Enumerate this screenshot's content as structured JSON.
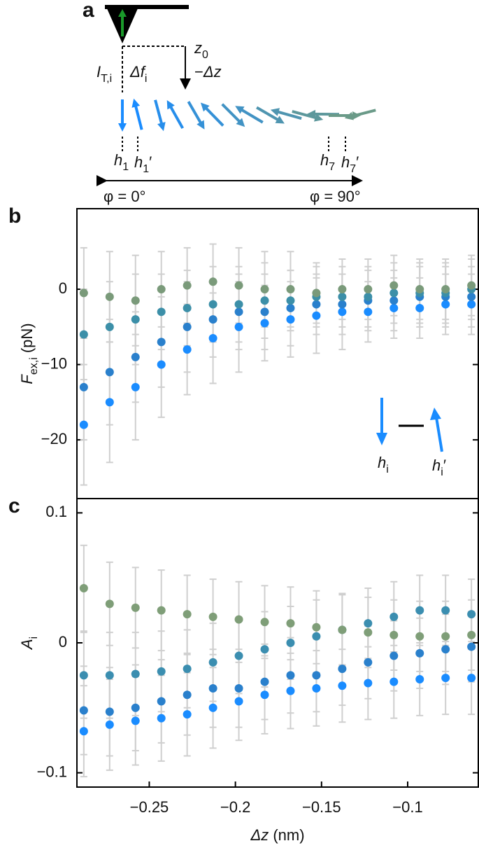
{
  "panel_a": {
    "letter": "a",
    "z0": [
      {
        "t": "z",
        "italic": true
      },
      {
        "t": "0",
        "sub": true
      }
    ],
    "dz": [
      {
        "t": "−"
      },
      {
        "t": "Δz",
        "italic": true
      }
    ],
    "it": [
      {
        "t": "I",
        "italic": true
      },
      {
        "t": "T,i",
        "sub": true
      }
    ],
    "df": [
      {
        "t": "Δf",
        "italic": true
      },
      {
        "t": "i",
        "sub": true
      }
    ],
    "h1": [
      {
        "t": "h",
        "italic": true
      },
      {
        "t": "1",
        "sub": true
      }
    ],
    "h1p": [
      {
        "t": "h",
        "italic": true
      },
      {
        "t": "1",
        "sub": true
      },
      {
        "t": "′"
      }
    ],
    "h7": [
      {
        "t": "h",
        "italic": true
      },
      {
        "t": "7",
        "sub": true
      }
    ],
    "h7p": [
      {
        "t": "h",
        "italic": true
      },
      {
        "t": "7",
        "sub": true
      },
      {
        "t": "′"
      }
    ],
    "phi0": "φ = 0°",
    "phi90": "φ = 90°"
  },
  "chart_data": [
    {
      "type": "scatter",
      "letter": "b",
      "ylabel": [
        {
          "t": "F",
          "italic": true
        },
        {
          "t": "ex,i",
          "sub": true
        },
        {
          "t": " (pN)"
        }
      ],
      "legend": [
        [
          {
            "t": "h",
            "italic": true
          },
          {
            "t": "i",
            "sub": true
          }
        ],
        [
          {
            "t": "h",
            "italic": true
          },
          {
            "t": "i",
            "sub": true
          },
          {
            "t": "′"
          }
        ]
      ],
      "x": [
        -0.288,
        -0.273,
        -0.258,
        -0.243,
        -0.228,
        -0.213,
        -0.198,
        -0.183,
        -0.168,
        -0.153,
        -0.138,
        -0.123,
        -0.108,
        -0.093,
        -0.078,
        -0.063
      ],
      "xlim": [
        -0.292,
        -0.059
      ],
      "ylim": [
        -27.8,
        10.7
      ],
      "yticks": [
        {
          "value": -20,
          "label": "−20"
        },
        {
          "value": -10,
          "label": "−10"
        },
        0
      ],
      "series": [
        {
          "color": "#1a8cff",
          "values": [
            -18,
            -15,
            -13,
            -10,
            -8,
            -6.5,
            -5,
            -4.5,
            -4,
            -3.5,
            -3,
            -3,
            -2.5,
            -2.5,
            -2,
            -2
          ],
          "errors": [
            8,
            8,
            7,
            7,
            6,
            6,
            6,
            5,
            5,
            5,
            5,
            4,
            4,
            4,
            4,
            4
          ]
        },
        {
          "color": "#2a80cc",
          "values": [
            -13,
            -11,
            -9,
            -7,
            -5,
            -4,
            -3,
            -3,
            -2.5,
            -2,
            -2,
            -1.5,
            -1.5,
            -1,
            -1,
            -1
          ],
          "errors": [
            7,
            7,
            6,
            6,
            6,
            5,
            5,
            5,
            5,
            4,
            4,
            4,
            4,
            4,
            4,
            4
          ]
        },
        {
          "color": "#3c8fa8",
          "values": [
            -6,
            -5,
            -4,
            -3,
            -2.5,
            -2,
            -2,
            -1.5,
            -1.5,
            -1,
            -1,
            -1,
            -0.5,
            -0.5,
            -0.5,
            0
          ],
          "errors": [
            6,
            6,
            6,
            5,
            5,
            5,
            5,
            5,
            4,
            4,
            4,
            4,
            4,
            4,
            4,
            4
          ]
        },
        {
          "color": "#7a9a7a",
          "values": [
            -0.5,
            -1,
            -1.5,
            0,
            0.5,
            1,
            0.5,
            0,
            0,
            -0.5,
            0,
            0,
            0.5,
            0,
            0,
            0.5
          ],
          "errors": [
            6,
            6,
            6,
            5,
            5,
            5,
            5,
            5,
            5,
            4,
            4,
            4,
            4,
            4,
            4,
            4
          ]
        }
      ]
    },
    {
      "type": "scatter",
      "letter": "c",
      "ylabel": [
        {
          "t": "A",
          "italic": true
        },
        {
          "t": "i",
          "sub": true
        }
      ],
      "xlabel": [
        {
          "t": "Δz",
          "italic": true
        },
        {
          "t": " (nm)"
        }
      ],
      "x": [
        -0.288,
        -0.273,
        -0.258,
        -0.243,
        -0.228,
        -0.213,
        -0.198,
        -0.183,
        -0.168,
        -0.153,
        -0.138,
        -0.123,
        -0.108,
        -0.093,
        -0.078,
        -0.063
      ],
      "xlim": [
        -0.292,
        -0.059
      ],
      "ylim": [
        -0.111,
        0.111
      ],
      "xticks": [
        {
          "value": -0.25,
          "label": "−0.25"
        },
        {
          "value": -0.2,
          "label": "−0.2"
        },
        {
          "value": -0.15,
          "label": "−0.15"
        },
        {
          "value": -0.1,
          "label": "−0.1"
        }
      ],
      "yticks": [
        {
          "value": -0.1,
          "label": "−0.1"
        },
        0,
        0.1
      ],
      "series": [
        {
          "color": "#1a8cff",
          "values": [
            -0.068,
            -0.063,
            -0.06,
            -0.058,
            -0.055,
            -0.05,
            -0.045,
            -0.04,
            -0.037,
            -0.035,
            -0.033,
            -0.031,
            -0.03,
            -0.028,
            -0.027,
            -0.027
          ],
          "errors": [
            0.035,
            0.035,
            0.034,
            0.033,
            0.032,
            0.031,
            0.03,
            0.03,
            0.029,
            0.029,
            0.028,
            0.028,
            0.028,
            0.028,
            0.028,
            0.028
          ]
        },
        {
          "color": "#2a80cc",
          "values": [
            -0.052,
            -0.053,
            -0.05,
            -0.045,
            -0.04,
            -0.035,
            -0.035,
            -0.03,
            -0.025,
            -0.025,
            -0.02,
            -0.015,
            -0.01,
            -0.008,
            -0.005,
            -0.003
          ],
          "errors": [
            0.034,
            0.034,
            0.033,
            0.032,
            0.031,
            0.03,
            0.03,
            0.029,
            0.029,
            0.028,
            0.028,
            0.028,
            0.027,
            0.027,
            0.027,
            0.027
          ]
        },
        {
          "color": "#3b8eb0",
          "values": [
            -0.025,
            -0.025,
            -0.024,
            -0.022,
            -0.02,
            -0.015,
            -0.01,
            -0.005,
            0,
            0.005,
            0.01,
            0.015,
            0.02,
            0.025,
            0.025,
            0.022
          ],
          "errors": [
            0.033,
            0.033,
            0.032,
            0.031,
            0.03,
            0.03,
            0.029,
            0.029,
            0.028,
            0.028,
            0.028,
            0.027,
            0.027,
            0.027,
            0.027,
            0.027
          ]
        },
        {
          "color": "#7f9e78",
          "values": [
            0.042,
            0.03,
            0.027,
            0.025,
            0.022,
            0.02,
            0.018,
            0.016,
            0.015,
            0.012,
            0.01,
            0.008,
            0.006,
            0.005,
            0.005,
            0.006
          ],
          "errors": [
            0.033,
            0.032,
            0.031,
            0.031,
            0.03,
            0.029,
            0.029,
            0.028,
            0.028,
            0.028,
            0.027,
            0.027,
            0.027,
            0.027,
            0.027,
            0.027
          ]
        }
      ]
    }
  ]
}
